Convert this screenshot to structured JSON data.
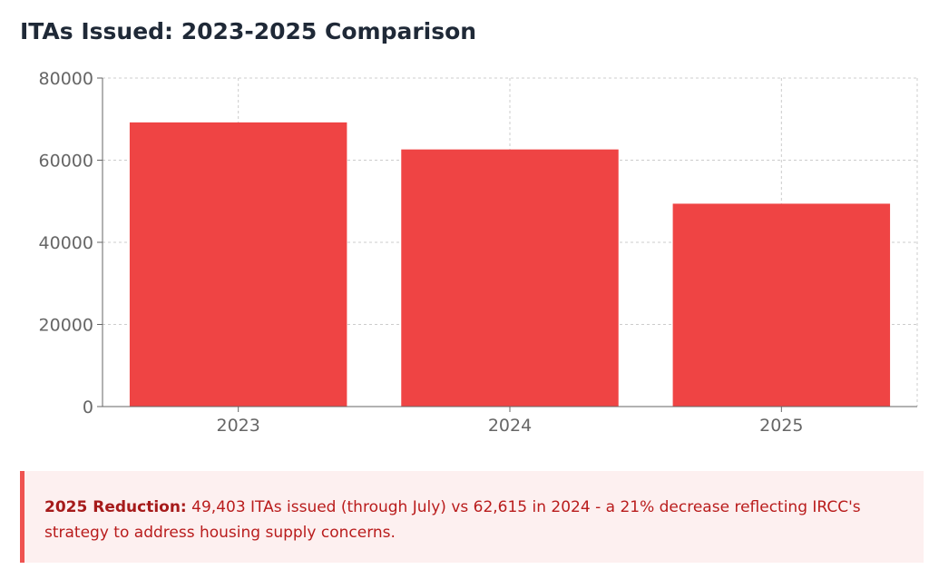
{
  "title": "ITAs Issued: 2023-2025 Comparison",
  "chart_data": {
    "type": "bar",
    "categories": [
      "2023",
      "2024",
      "2025"
    ],
    "values": [
      69200,
      62615,
      49403
    ],
    "ylim": [
      0,
      80000
    ],
    "yticks": [
      0,
      20000,
      40000,
      60000,
      80000
    ],
    "grid": true,
    "legend": "none",
    "bar_color": "#ef4444"
  },
  "callout": {
    "label": "2025 Reduction:",
    "text": " 49,403 ITAs issued (through July) vs 62,615 in 2024 - a 21% decrease reflecting IRCC's strategy to address housing supply concerns."
  },
  "colors": {
    "accent": "#ef4444",
    "callout_bg": "#fdf0f0",
    "callout_border": "#ef5350",
    "callout_text": "#b91c1c"
  }
}
